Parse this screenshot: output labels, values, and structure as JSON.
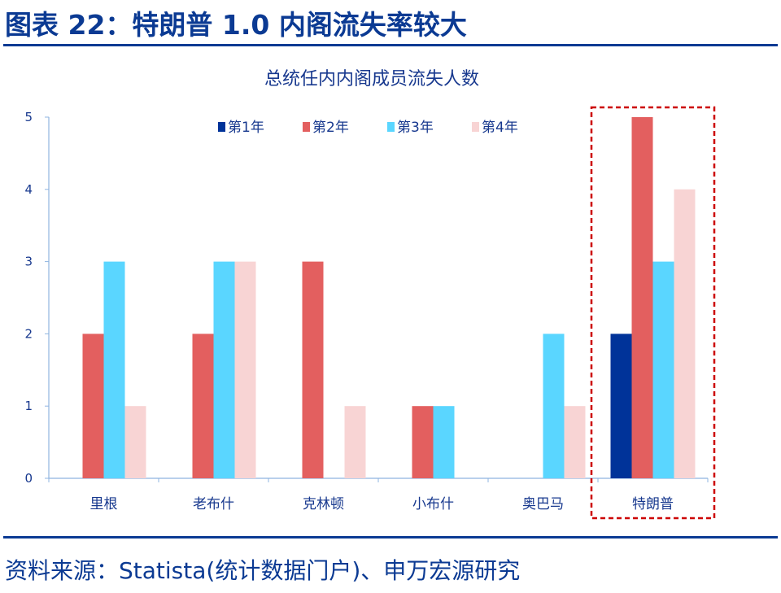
{
  "figure_title": "图表 22：特朗普 1.0 内阁流失率较大",
  "source": "资料来源：Statista(统计数据门户)、申万宏源研究",
  "chart_data": {
    "type": "bar",
    "title": "总统任内内阁成员流失人数",
    "categories": [
      "里根",
      "老布什",
      "克林顿",
      "小布什",
      "奥巴马",
      "特朗普"
    ],
    "series": [
      {
        "name": "第1年",
        "color": "#003399",
        "values": [
          0,
          0,
          0,
          0,
          0,
          2
        ]
      },
      {
        "name": "第2年",
        "color": "#E35F5F",
        "values": [
          2,
          2,
          3,
          1,
          0,
          5
        ]
      },
      {
        "name": "第3年",
        "color": "#5AD6FF",
        "values": [
          3,
          3,
          0,
          1,
          2,
          3
        ]
      },
      {
        "name": "第4年",
        "color": "#F8D4D4",
        "values": [
          1,
          3,
          1,
          0,
          1,
          4
        ]
      }
    ],
    "yticks": [
      "0",
      "1",
      "2",
      "3",
      "4",
      "5"
    ],
    "ylim": [
      0,
      5
    ],
    "grid": false,
    "legend": "top",
    "highlight": {
      "category": "特朗普",
      "style": "red dashed box",
      "color": "#CC0000"
    }
  }
}
